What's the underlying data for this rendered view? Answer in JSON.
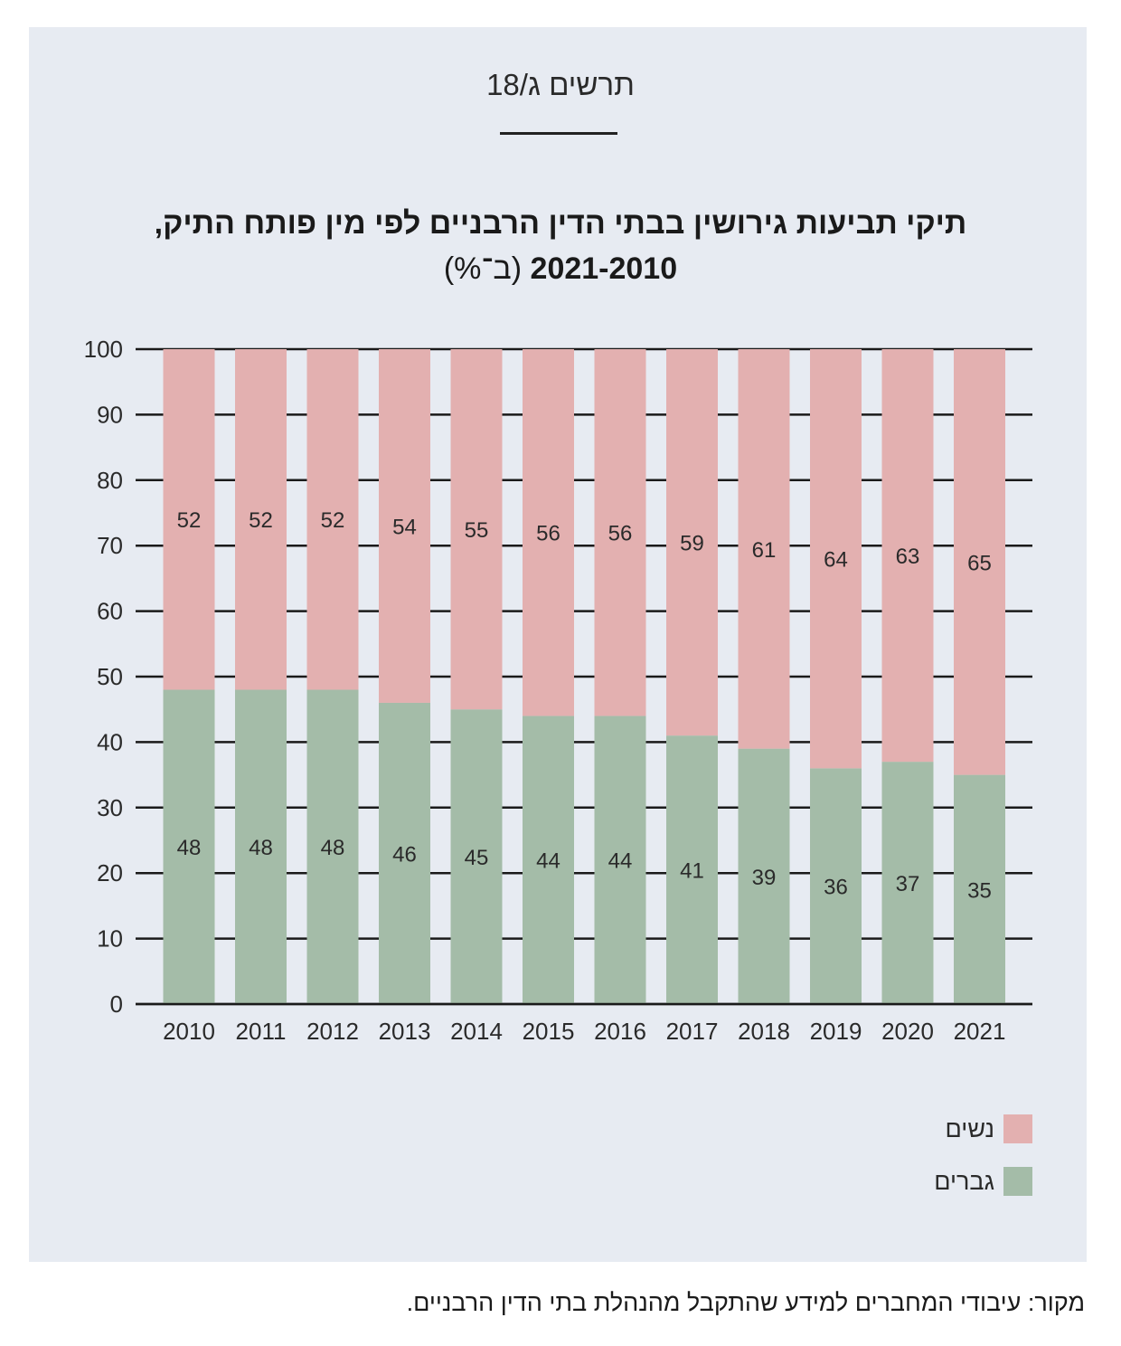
{
  "figure_label": "תרשים ג/18",
  "title": {
    "line1": "תיקי תביעות גירושין בבתי הדין הרבניים לפי מין פותח התיק,",
    "years": "2021-2010",
    "unit": "(ב־%)"
  },
  "legend": {
    "women": "נשים",
    "men": "גברים"
  },
  "colors": {
    "women": "#e3b0b0",
    "men": "#a4bca8",
    "panel": "#e7ebf2"
  },
  "source": {
    "prefix": "מקור:",
    "text": "עיבודי המחברים למידע שהתקבל מהנהלת בתי הדין הרבניים."
  },
  "chart_data": {
    "type": "bar",
    "stacked": true,
    "categories": [
      "2010",
      "2011",
      "2012",
      "2013",
      "2014",
      "2015",
      "2016",
      "2017",
      "2018",
      "2019",
      "2020",
      "2021"
    ],
    "series": [
      {
        "name": "גברים",
        "values": [
          48,
          48,
          48,
          46,
          45,
          44,
          44,
          41,
          39,
          36,
          37,
          35
        ]
      },
      {
        "name": "נשים",
        "values": [
          52,
          52,
          52,
          54,
          55,
          56,
          56,
          59,
          61,
          64,
          63,
          65
        ]
      }
    ],
    "ylim": [
      0,
      100
    ],
    "yticks": [
      0,
      10,
      20,
      30,
      40,
      50,
      60,
      70,
      80,
      90,
      100
    ],
    "grid": true,
    "legend_position": "bottom-right"
  }
}
